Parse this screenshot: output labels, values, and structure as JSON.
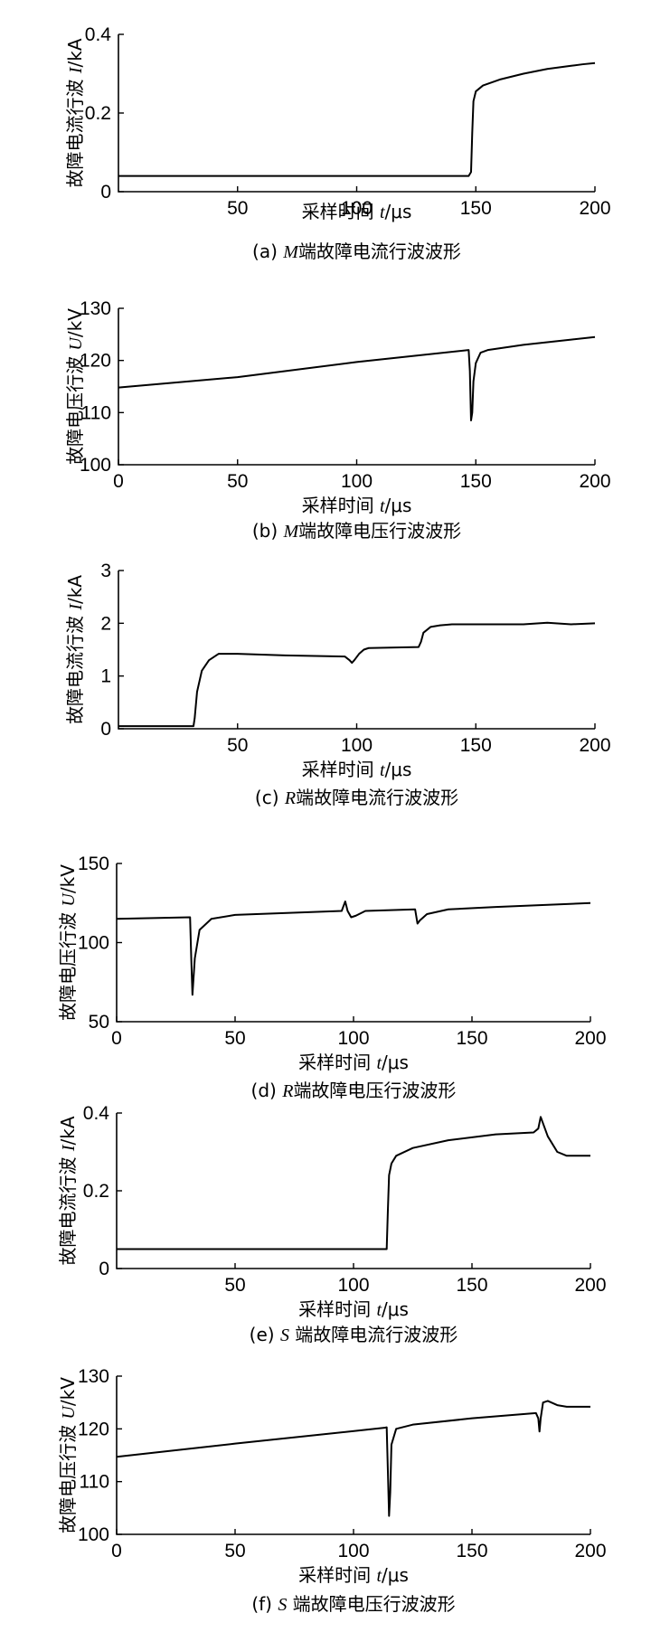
{
  "chart_data": [
    {
      "type": "line",
      "caption_prefix": "(a) ",
      "caption_var": "M",
      "caption_rest": "端故障电流行波波形",
      "xlabel_prefix": "采样时间 ",
      "xlabel_var": "t",
      "xlabel_unit": "/μs",
      "ylabel_prefix": "故障电流行波 ",
      "ylabel_var": "I",
      "ylabel_unit": "/kA",
      "xlim": [
        0,
        200
      ],
      "ylim": [
        0,
        0.4
      ],
      "xticks": [
        50,
        100,
        150,
        200
      ],
      "xtick_labels": [
        "50",
        "100",
        "150",
        "200"
      ],
      "yticks": [
        0,
        0.2,
        0.4
      ],
      "ytick_labels": [
        "0",
        "0.2",
        "0.4"
      ],
      "grid": false,
      "series": [
        {
          "x": [
            0,
            147,
            148,
            148.5,
            149,
            150,
            153,
            160,
            170,
            180,
            190,
            195,
            200
          ],
          "y": [
            0.04,
            0.04,
            0.05,
            0.15,
            0.23,
            0.255,
            0.27,
            0.285,
            0.3,
            0.312,
            0.32,
            0.324,
            0.327
          ]
        }
      ]
    },
    {
      "type": "line",
      "caption_prefix": "(b) ",
      "caption_var": "M",
      "caption_rest": "端故障电压行波波形",
      "xlabel_prefix": "采样时间 ",
      "xlabel_var": "t",
      "xlabel_unit": "/μs",
      "ylabel_prefix": "故障电压行波 ",
      "ylabel_var": "U",
      "ylabel_unit": "/kV",
      "xlim": [
        0,
        200
      ],
      "ylim": [
        100,
        130
      ],
      "xticks": [
        0,
        50,
        100,
        150,
        200
      ],
      "xtick_labels": [
        "0",
        "50",
        "100",
        "150",
        "200"
      ],
      "yticks": [
        100,
        110,
        120,
        130
      ],
      "ytick_labels": [
        "100",
        "110",
        "120",
        "130"
      ],
      "grid": false,
      "series": [
        {
          "x": [
            0,
            50,
            100,
            147,
            147.5,
            148,
            148.5,
            149,
            150,
            152,
            155,
            170,
            190,
            200
          ],
          "y": [
            114.8,
            116.8,
            119.7,
            122.0,
            118,
            108.5,
            110,
            116,
            119.5,
            121.5,
            122.0,
            123.0,
            124.0,
            124.5
          ]
        }
      ]
    },
    {
      "type": "line",
      "caption_prefix": "(c) ",
      "caption_var": "R",
      "caption_rest": "端故障电流行波波形",
      "xlabel_prefix": "采样时间 ",
      "xlabel_var": "t",
      "xlabel_unit": "/μs",
      "ylabel_prefix": "故障电流行波 ",
      "ylabel_var": "I",
      "ylabel_unit": "/kA",
      "xlim": [
        0,
        200
      ],
      "ylim": [
        0,
        3
      ],
      "xticks": [
        50,
        100,
        150,
        200
      ],
      "xtick_labels": [
        "50",
        "100",
        "150",
        "200"
      ],
      "yticks": [
        0,
        1,
        2,
        3
      ],
      "ytick_labels": [
        "0",
        "1",
        "2",
        "3"
      ],
      "grid": false,
      "series": [
        {
          "x": [
            0,
            31.5,
            32,
            33,
            35,
            38,
            42,
            50,
            70,
            95,
            97,
            98,
            99,
            101,
            103,
            105,
            126,
            127,
            128,
            131,
            135,
            140,
            160,
            170,
            180,
            190,
            200
          ],
          "y": [
            0.05,
            0.05,
            0.2,
            0.7,
            1.1,
            1.3,
            1.42,
            1.42,
            1.39,
            1.37,
            1.3,
            1.25,
            1.3,
            1.42,
            1.5,
            1.53,
            1.55,
            1.65,
            1.82,
            1.93,
            1.96,
            1.98,
            1.98,
            1.98,
            2.01,
            1.98,
            2.0
          ]
        }
      ]
    },
    {
      "type": "line",
      "caption_prefix": "(d) ",
      "caption_var": "R",
      "caption_rest": "端故障电压行波波形",
      "xlabel_prefix": "采样时间 ",
      "xlabel_var": "t",
      "xlabel_unit": "/μs",
      "ylabel_prefix": "故障电压行波 ",
      "ylabel_var": "U",
      "ylabel_unit": "/kV",
      "xlim": [
        0,
        200
      ],
      "ylim": [
        50,
        150
      ],
      "xticks": [
        0,
        50,
        100,
        150,
        200
      ],
      "xtick_labels": [
        "0",
        "50",
        "100",
        "150",
        "200"
      ],
      "yticks": [
        50,
        100,
        150
      ],
      "ytick_labels": [
        "50",
        "100",
        "150"
      ],
      "grid": false,
      "series": [
        {
          "x": [
            0,
            31,
            31.5,
            32,
            33,
            35,
            40,
            50,
            95,
            96.5,
            97.5,
            99,
            101,
            105,
            126,
            127,
            128,
            131,
            140,
            160,
            200
          ],
          "y": [
            115,
            116,
            90,
            67,
            90,
            108,
            115,
            117.5,
            120,
            126,
            120,
            116,
            117,
            120,
            121,
            112,
            114,
            118,
            121,
            122.5,
            125
          ]
        }
      ]
    },
    {
      "type": "line",
      "caption_prefix": "(e) ",
      "caption_var": "S",
      "caption_rest": " 端故障电流行波波形",
      "xlabel_prefix": "采样时间 ",
      "xlabel_var": "t",
      "xlabel_unit": "/μs",
      "ylabel_prefix": "故障电流行波 ",
      "ylabel_var": "I",
      "ylabel_unit": "/kA",
      "xlim": [
        0,
        200
      ],
      "ylim": [
        0,
        0.4
      ],
      "xticks": [
        50,
        100,
        150,
        200
      ],
      "xtick_labels": [
        "50",
        "100",
        "150",
        "200"
      ],
      "yticks": [
        0,
        0.2,
        0.4
      ],
      "ytick_labels": [
        "0",
        "0.2",
        "0.4"
      ],
      "grid": false,
      "series": [
        {
          "x": [
            0,
            114,
            114.5,
            115,
            116,
            118,
            125,
            140,
            160,
            176,
            178,
            179,
            182,
            186,
            190,
            195,
            200
          ],
          "y": [
            0.05,
            0.05,
            0.15,
            0.24,
            0.27,
            0.29,
            0.31,
            0.33,
            0.345,
            0.35,
            0.36,
            0.39,
            0.34,
            0.3,
            0.29,
            0.29,
            0.29
          ]
        }
      ]
    },
    {
      "type": "line",
      "caption_prefix": "(f) ",
      "caption_var": "S",
      "caption_rest": " 端故障电压行波波形",
      "xlabel_prefix": "采样时间 ",
      "xlabel_var": "t",
      "xlabel_unit": "/μs",
      "ylabel_prefix": "故障电压行波 ",
      "ylabel_var": "U",
      "ylabel_unit": "/kV",
      "xlim": [
        0,
        200
      ],
      "ylim": [
        100,
        130
      ],
      "xticks": [
        0,
        50,
        100,
        150,
        200
      ],
      "xtick_labels": [
        "0",
        "50",
        "100",
        "150",
        "200"
      ],
      "yticks": [
        100,
        110,
        120,
        130
      ],
      "ytick_labels": [
        "100",
        "110",
        "120",
        "130"
      ],
      "grid": false,
      "series": [
        {
          "x": [
            0,
            50,
            113,
            114,
            114.5,
            115,
            115.5,
            116,
            118,
            125,
            150,
            177,
            178,
            178.5,
            179,
            180,
            182,
            186,
            190,
            200
          ],
          "y": [
            114.7,
            117.2,
            120.2,
            120.3,
            112,
            103.5,
            108,
            117,
            120,
            120.8,
            122.0,
            123.0,
            122,
            119.5,
            122,
            125,
            125.3,
            124.5,
            124.2,
            124.2
          ]
        }
      ]
    }
  ]
}
